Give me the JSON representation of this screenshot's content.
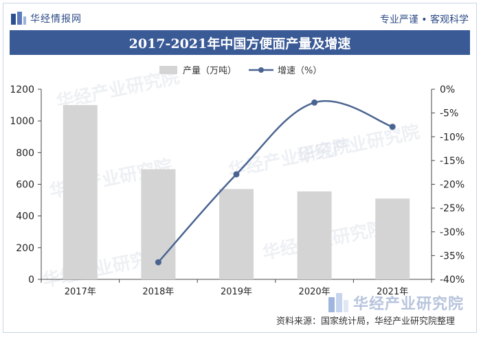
{
  "header": {
    "brand": "华经情报网",
    "slogan": "专业严谨 • 客观科学"
  },
  "watermark": "华经产业研究院",
  "source_note": "资料来源：国家统计局，华经产业研究院整理",
  "colors": {
    "bar": "#d4d4d4",
    "line": "#4a6491",
    "title_bg": "#3a5a96"
  },
  "chart_data": {
    "type": "bar",
    "title": "2017-2021年中国方便面产量及增速",
    "categories": [
      "2017年",
      "2018年",
      "2019年",
      "2020年",
      "2021年"
    ],
    "series": [
      {
        "name": "产量（万吨）",
        "type": "bar",
        "axis": "left",
        "values": [
          1100,
          695,
          570,
          555,
          510
        ]
      },
      {
        "name": "增速（%）",
        "type": "line",
        "axis": "right",
        "values": [
          null,
          -36.4,
          -17.9,
          -2.8,
          -7.9
        ]
      }
    ],
    "y_left": {
      "min": 0,
      "max": 1200,
      "ticks": [
        "0",
        "200",
        "400",
        "600",
        "800",
        "1000",
        "1200"
      ]
    },
    "y_right": {
      "min": -40,
      "max": 0,
      "ticks": [
        "0%",
        "-5%",
        "-10%",
        "-15%",
        "-20%",
        "-25%",
        "-30%",
        "-35%",
        "-40%"
      ]
    },
    "legend_position": "top-center",
    "grid": false
  }
}
